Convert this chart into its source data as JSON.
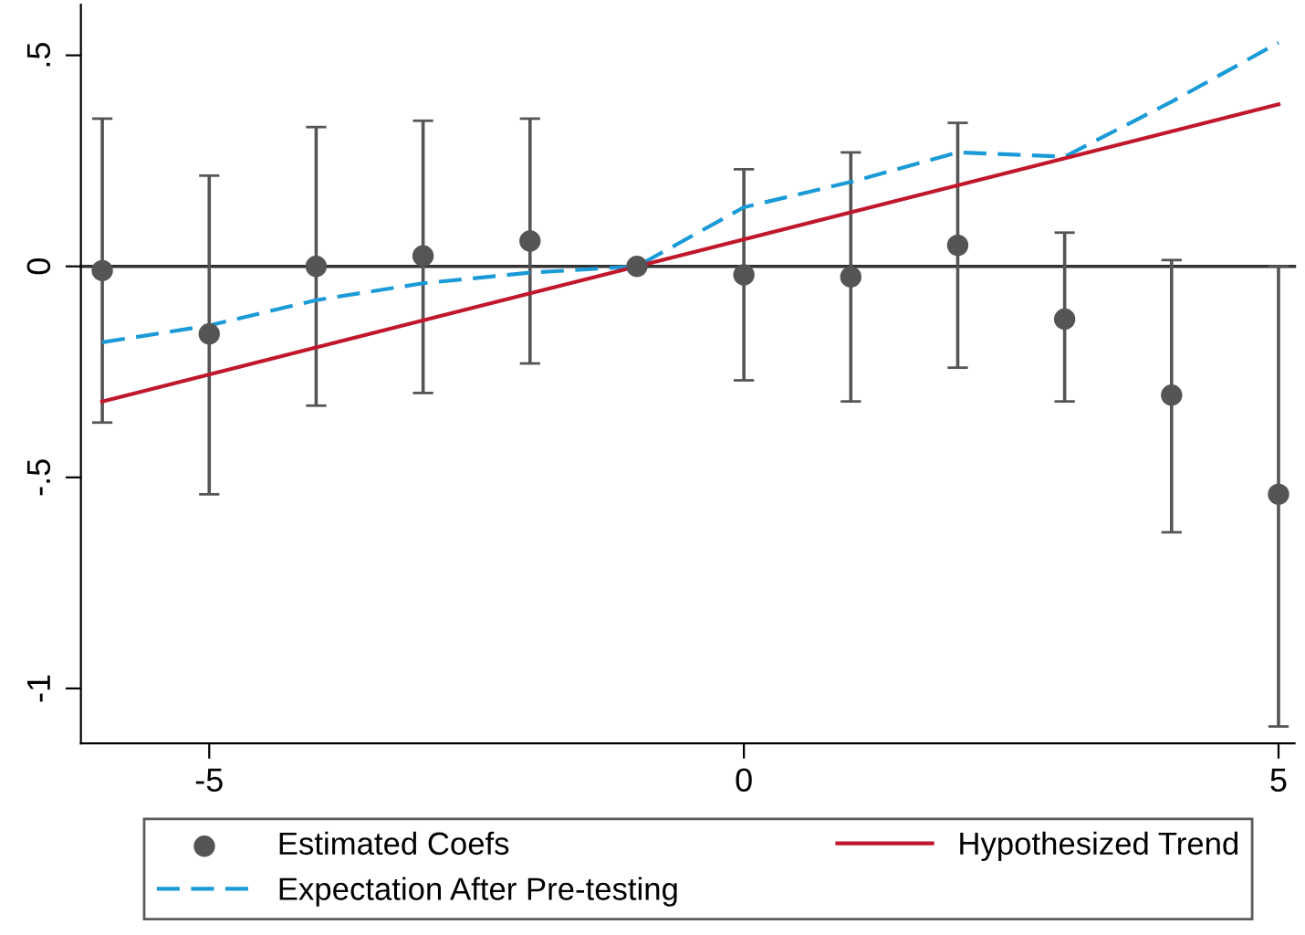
{
  "chart_data": {
    "type": "scatter",
    "x": [
      -6,
      -5,
      -4,
      -3,
      -2,
      -1,
      0,
      1,
      2,
      3,
      4,
      5
    ],
    "series": [
      {
        "name": "Estimated Coefs",
        "color": "#555555",
        "marker": "circle",
        "values": [
          -0.01,
          -0.16,
          0.0,
          0.025,
          0.06,
          0.0,
          -0.02,
          -0.025,
          0.05,
          -0.125,
          -0.305,
          -0.54
        ],
        "errors": [
          [
            -0.37,
            0.35
          ],
          [
            -0.54,
            0.215
          ],
          [
            -0.33,
            0.33
          ],
          [
            -0.3,
            0.345
          ],
          [
            -0.23,
            0.35
          ],
          null,
          [
            -0.27,
            0.23
          ],
          [
            -0.32,
            0.27
          ],
          [
            -0.24,
            0.34
          ],
          [
            -0.32,
            0.08
          ],
          [
            -0.63,
            0.015
          ],
          [
            -1.09,
            0.0
          ]
        ]
      },
      {
        "name": "Expectation After Pre-testing",
        "type": "line",
        "color": "#1a9ad6",
        "line_style": "dashed",
        "values": [
          -0.18,
          -0.14,
          -0.08,
          -0.04,
          -0.015,
          0.0,
          0.14,
          0.2,
          0.27,
          0.26,
          0.39,
          0.53
        ]
      },
      {
        "name": "Hypothesized Trend",
        "type": "line",
        "color": "#c0172b",
        "line_style": "solid",
        "x": [
          -6,
          5
        ],
        "values": [
          -0.32,
          0.384
        ]
      }
    ],
    "xlim": [
      -6.2,
      5.15
    ],
    "ylim": [
      -1.13,
      0.62
    ],
    "xticks": [
      -5,
      0,
      5
    ],
    "yticks": [
      {
        "value": 0.5,
        "label": ".5"
      },
      {
        "value": 0,
        "label": "0"
      },
      {
        "value": -0.5,
        "label": "-.5"
      },
      {
        "value": -1,
        "label": "-1"
      }
    ],
    "ref_lines": [
      {
        "axis": "y",
        "value": 0,
        "color": "#333333",
        "line_style": "solid"
      }
    ],
    "grid": false,
    "legend": "bottom"
  }
}
